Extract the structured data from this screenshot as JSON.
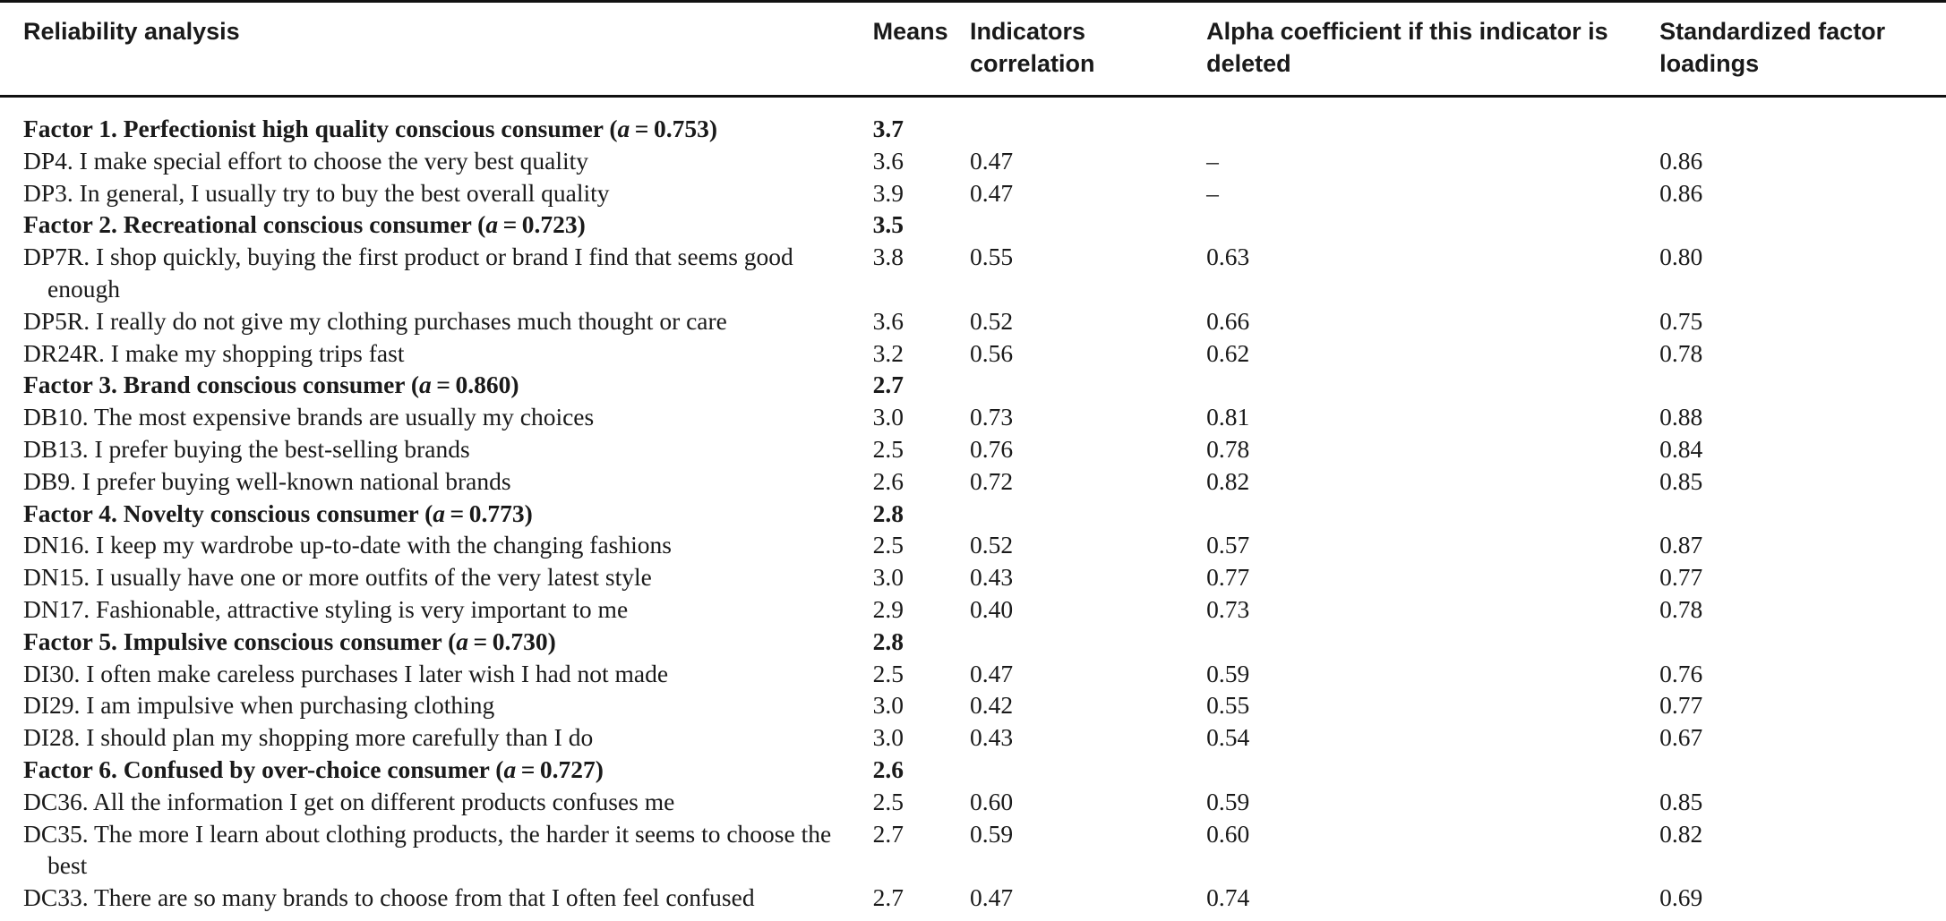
{
  "header": {
    "col1": "Reliability analysis",
    "col2": "Means",
    "col3": "Indicators correlation",
    "col4": "Alpha coefficient if this indicator is deleted",
    "col5": "Standardized factor loadings"
  },
  "rows": [
    {
      "kind": "factor",
      "pre": "Factor 1. Perfectionist high quality conscious consumer (",
      "a": "a",
      "post": " = 0.753)",
      "mean": "3.7"
    },
    {
      "kind": "item",
      "text": "DP4. I make special effort to choose the very best quality",
      "mean": "3.6",
      "corr": "0.47",
      "alpha": "–",
      "load": "0.86"
    },
    {
      "kind": "item",
      "text": "DP3. In general, I usually try to buy the best overall quality",
      "mean": "3.9",
      "corr": "0.47",
      "alpha": "–",
      "load": "0.86"
    },
    {
      "kind": "factor",
      "pre": "Factor 2. Recreational conscious consumer (",
      "a": "a",
      "post": " = 0.723)",
      "mean": "3.5"
    },
    {
      "kind": "item",
      "text": "DP7R. I shop quickly, buying the first product or brand I find that seems good enough",
      "mean": "3.8",
      "corr": "0.55",
      "alpha": "0.63",
      "load": "0.80"
    },
    {
      "kind": "item",
      "text": "DP5R. I really do not give my clothing purchases much thought or care",
      "mean": "3.6",
      "corr": "0.52",
      "alpha": "0.66",
      "load": "0.75"
    },
    {
      "kind": "item",
      "text": "DR24R. I make my shopping trips fast",
      "mean": "3.2",
      "corr": "0.56",
      "alpha": "0.62",
      "load": "0.78"
    },
    {
      "kind": "factor",
      "pre": "Factor 3. Brand conscious consumer (",
      "a": "a",
      "post": " = 0.860)",
      "mean": "2.7"
    },
    {
      "kind": "item",
      "text": "DB10. The most expensive brands are usually my choices",
      "mean": "3.0",
      "corr": "0.73",
      "alpha": "0.81",
      "load": "0.88"
    },
    {
      "kind": "item",
      "text": "DB13. I prefer buying the best-selling brands",
      "mean": "2.5",
      "corr": "0.76",
      "alpha": "0.78",
      "load": "0.84"
    },
    {
      "kind": "item",
      "text": "DB9. I prefer buying well-known national brands",
      "mean": "2.6",
      "corr": "0.72",
      "alpha": "0.82",
      "load": "0.85"
    },
    {
      "kind": "factor",
      "pre": "Factor 4. Novelty conscious consumer (",
      "a": "a",
      "post": " = 0.773)",
      "mean": "2.8"
    },
    {
      "kind": "item",
      "text": "DN16. I keep my wardrobe up-to-date with the changing fashions",
      "mean": "2.5",
      "corr": "0.52",
      "alpha": "0.57",
      "load": "0.87"
    },
    {
      "kind": "item",
      "text": "DN15. I usually have one or more outfits of the very latest style",
      "mean": "3.0",
      "corr": "0.43",
      "alpha": "0.77",
      "load": "0.77"
    },
    {
      "kind": "item",
      "text": "DN17. Fashionable, attractive styling is very important to me",
      "mean": "2.9",
      "corr": "0.40",
      "alpha": "0.73",
      "load": "0.78"
    },
    {
      "kind": "factor",
      "pre": "Factor 5. Impulsive conscious consumer (",
      "a": "a",
      "post": " = 0.730)",
      "mean": "2.8"
    },
    {
      "kind": "item",
      "text": "DI30. I often make careless purchases I later wish I had not made",
      "mean": "2.5",
      "corr": "0.47",
      "alpha": "0.59",
      "load": "0.76"
    },
    {
      "kind": "item",
      "text": "DI29. I am impulsive when purchasing clothing",
      "mean": "3.0",
      "corr": "0.42",
      "alpha": "0.55",
      "load": "0.77"
    },
    {
      "kind": "item",
      "text": "DI28. I should plan my shopping more carefully than I do",
      "mean": "3.0",
      "corr": "0.43",
      "alpha": "0.54",
      "load": "0.67"
    },
    {
      "kind": "factor",
      "pre": "Factor 6. Confused by over-choice consumer (",
      "a": "a",
      "post": " = 0.727)",
      "mean": "2.6"
    },
    {
      "kind": "item",
      "text": "DC36. All the information I get on different products confuses me",
      "mean": "2.5",
      "corr": "0.60",
      "alpha": "0.59",
      "load": "0.85"
    },
    {
      "kind": "item",
      "text": "DC35. The more I learn about clothing products, the harder it seems to choose the best",
      "mean": "2.7",
      "corr": "0.59",
      "alpha": "0.60",
      "load": "0.82"
    },
    {
      "kind": "item",
      "text": "DC33. There are so many brands to choose from that I often feel confused",
      "mean": "2.7",
      "corr": "0.47",
      "alpha": "0.74",
      "load": "0.69"
    }
  ]
}
